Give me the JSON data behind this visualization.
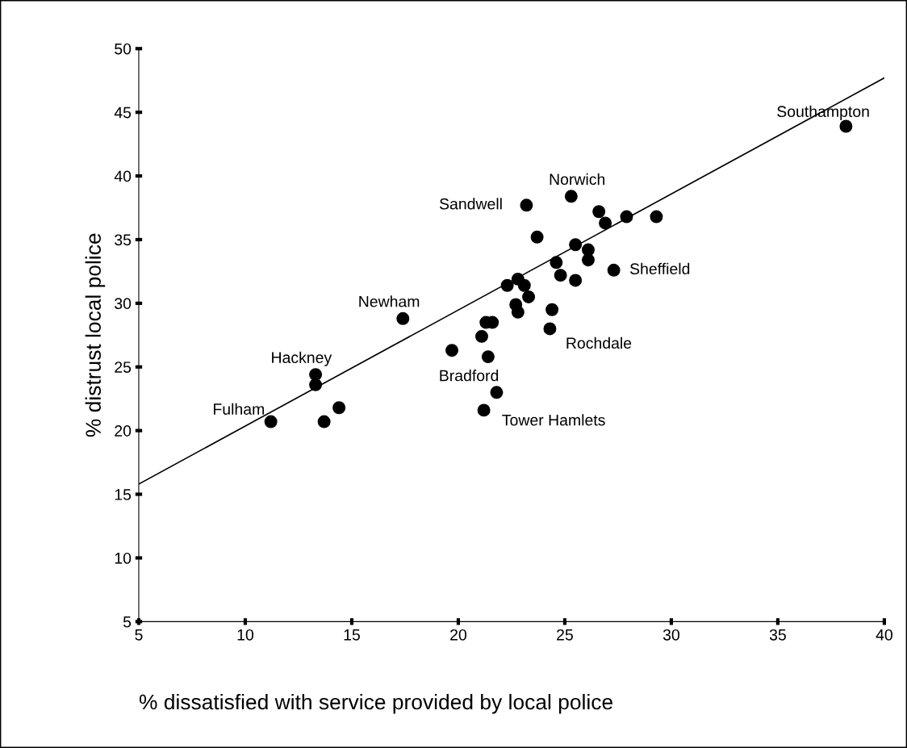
{
  "chart_data": {
    "type": "scatter",
    "xlabel": "% dissatisfied with service provided by local police",
    "ylabel": "% distrust local police",
    "xlim": [
      5,
      40
    ],
    "xticks": [
      5,
      10,
      15,
      20,
      25,
      30,
      35,
      40
    ],
    "ylim": [
      5,
      50
    ],
    "yticks": [
      5,
      10,
      15,
      20,
      25,
      30,
      35,
      40,
      45,
      50
    ],
    "grid": false,
    "series": [
      {
        "color": "#000000",
        "marker": "circle",
        "x": [
          38.2,
          23.2,
          25.3,
          26.6,
          26.9,
          27.9,
          29.3,
          23.7,
          25.5,
          26.1,
          26.1,
          24.6,
          24.8,
          27.3,
          25.5,
          22.3,
          22.8,
          23.1,
          23.3,
          22.7,
          22.8,
          24.4,
          21.3,
          21.6,
          21.1,
          24.3,
          17.4,
          13.3,
          13.3,
          11.2,
          13.7,
          14.4,
          19.7,
          21.4,
          21.8,
          21.2
        ],
        "values": [
          43.9,
          37.7,
          38.4,
          37.2,
          36.3,
          36.8,
          36.8,
          35.2,
          34.6,
          34.2,
          33.4,
          33.2,
          32.2,
          32.6,
          31.8,
          31.4,
          31.9,
          31.4,
          30.5,
          29.9,
          29.3,
          29.5,
          28.5,
          28.5,
          27.4,
          28.0,
          28.8,
          24.4,
          23.6,
          20.7,
          20.7,
          21.8,
          26.3,
          25.8,
          23.0,
          21.6
        ]
      },
      {
        "type": "line",
        "color": "#000000",
        "line_style": "solid",
        "marker": "none",
        "x": [
          5,
          40
        ],
        "values": [
          15.8,
          47.7
        ]
      }
    ],
    "annotations": [
      {
        "text": "Southampton",
        "x": 38.2,
        "y": 43.9
      },
      {
        "text": "Norwich",
        "x": 25.3,
        "y": 38.4
      },
      {
        "text": "Sandwell",
        "x": 23.2,
        "y": 37.7
      },
      {
        "text": "Sheffield",
        "x": 27.3,
        "y": 32.6
      },
      {
        "text": "Newham",
        "x": 17.4,
        "y": 28.8
      },
      {
        "text": "Rochdale",
        "x": 24.3,
        "y": 28.0
      },
      {
        "text": "Hackney",
        "x": 13.3,
        "y": 24.4
      },
      {
        "text": "Bradford",
        "x": 21.4,
        "y": 25.8
      },
      {
        "text": "Fulham",
        "x": 11.2,
        "y": 20.7
      },
      {
        "text": "Tower Hamlets",
        "x": 21.2,
        "y": 21.6
      }
    ]
  }
}
